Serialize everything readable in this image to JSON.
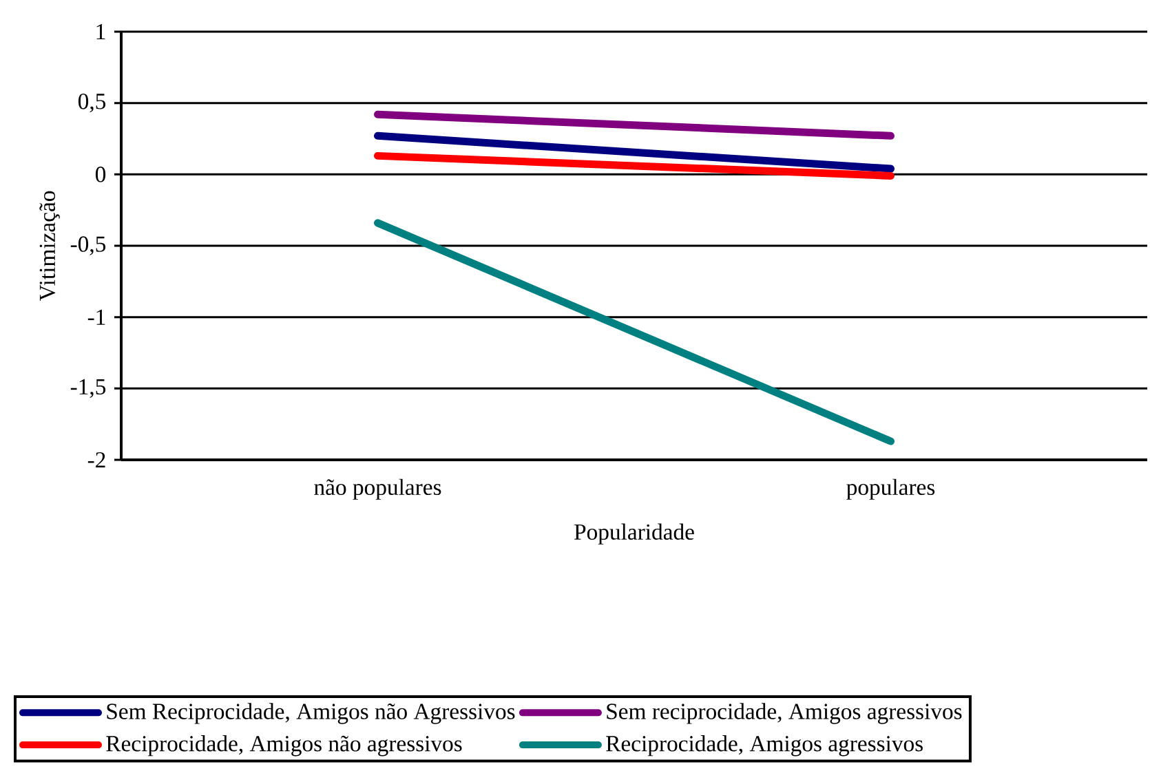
{
  "chart_data": {
    "type": "line",
    "xlabel": "Popularidade",
    "ylabel": "Vitimização",
    "categories": [
      "não populares",
      "populares"
    ],
    "series": [
      {
        "name": "Sem Reciprocidade, Amigos não Agressivos",
        "color": "#000080",
        "values": [
          0.27,
          0.04
        ]
      },
      {
        "name": "Sem reciprocidade, Amigos agressivos",
        "color": "#800080",
        "values": [
          0.42,
          0.27
        ]
      },
      {
        "name": "Reciprocidade, Amigos não agressivos",
        "color": "#ff0000",
        "values": [
          0.13,
          -0.01
        ]
      },
      {
        "name": "Reciprocidade, Amigos agressivos",
        "color": "#008080",
        "values": [
          -0.34,
          -1.87
        ]
      }
    ],
    "ylim": [
      -2,
      1
    ],
    "yticks": [
      -2,
      {
        "value": -1.5,
        "label": "-1,5"
      },
      -1,
      {
        "value": -0.5,
        "label": "-0,5"
      },
      0,
      {
        "value": 0.5,
        "label": "0,5"
      },
      1
    ],
    "grid": "y",
    "legend": "bottom",
    "marker": "none",
    "line_style": "solid"
  }
}
